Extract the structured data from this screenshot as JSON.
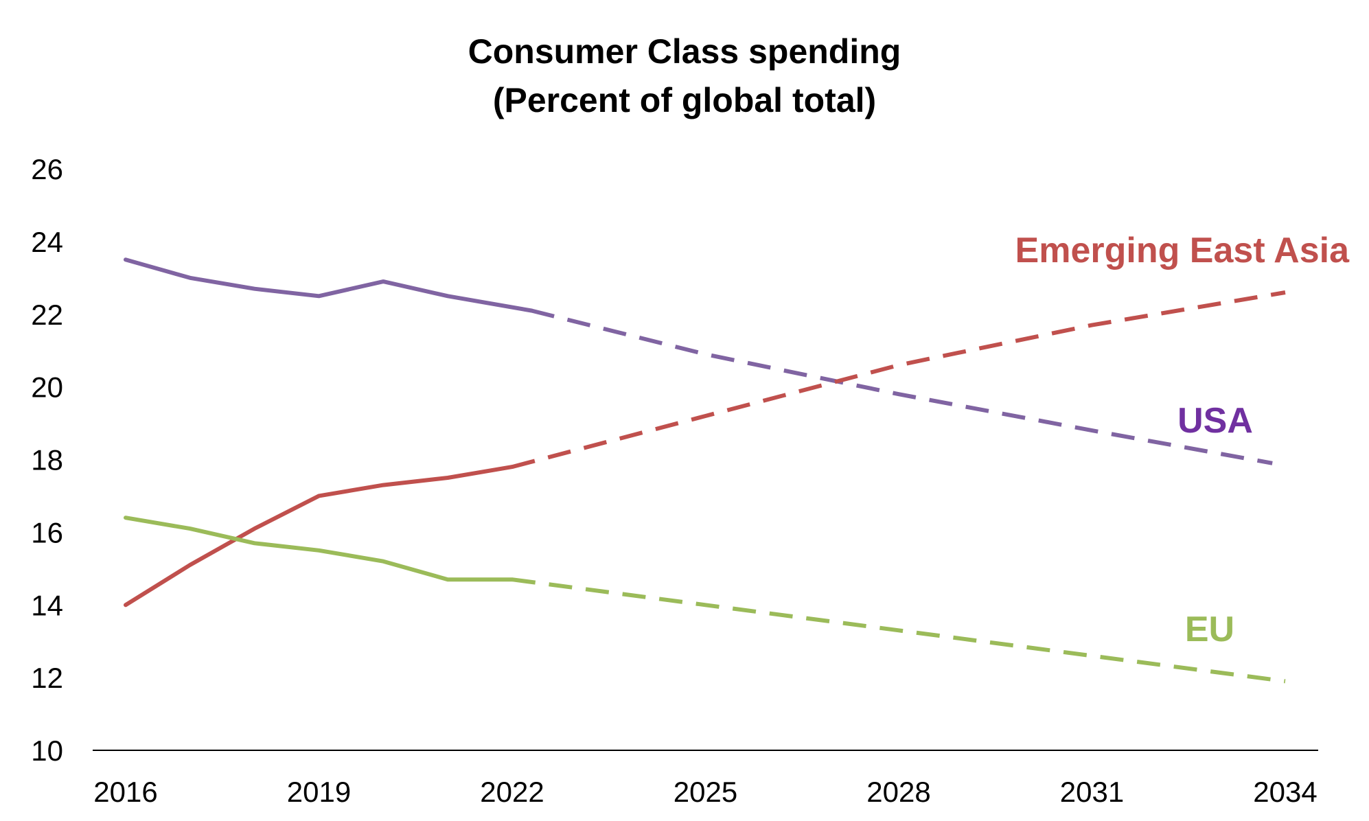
{
  "chart_data": {
    "type": "line",
    "title": "Consumer Class spending",
    "subtitle": "(Percent of global total)",
    "xlabel": "",
    "ylabel": "",
    "xlim": [
      2016,
      2034
    ],
    "ylim": [
      10,
      26
    ],
    "x_ticks": [
      "2016",
      "2019",
      "2022",
      "2025",
      "2028",
      "2031",
      "2034"
    ],
    "y_ticks": [
      "10",
      "12",
      "14",
      "16",
      "18",
      "20",
      "22",
      "24",
      "26"
    ],
    "grid": false,
    "legend": "inline labels at line ends",
    "series": [
      {
        "name": "USA",
        "label": "USA",
        "color": "#8064a2",
        "label_color": "#7030a0",
        "actual": {
          "x": [
            2016,
            2017,
            2018,
            2019,
            2020,
            2021,
            2022.3
          ],
          "y": [
            23.5,
            23.0,
            22.7,
            22.5,
            22.9,
            22.5,
            22.1
          ]
        },
        "projected": {
          "x": [
            2022.3,
            2025,
            2028,
            2031,
            2033.8
          ],
          "y": [
            22.1,
            20.9,
            19.8,
            18.8,
            17.9
          ]
        }
      },
      {
        "name": "Emerging East Asia",
        "label": "Emerging East Asia",
        "color": "#c0504d",
        "label_color": "#c0504d",
        "actual": {
          "x": [
            2016,
            2017,
            2018,
            2019,
            2020,
            2021,
            2022
          ],
          "y": [
            14.0,
            15.1,
            16.1,
            17.0,
            17.3,
            17.5,
            17.8
          ]
        },
        "projected": {
          "x": [
            2022,
            2025,
            2028,
            2031,
            2034
          ],
          "y": [
            17.8,
            19.2,
            20.6,
            21.7,
            22.6
          ]
        }
      },
      {
        "name": "EU",
        "label": "EU",
        "color": "#9bbb59",
        "label_color": "#9bbb59",
        "actual": {
          "x": [
            2016,
            2017,
            2018,
            2019,
            2020,
            2021,
            2022
          ],
          "y": [
            16.4,
            16.1,
            15.7,
            15.5,
            15.2,
            14.7,
            14.7
          ]
        },
        "projected": {
          "x": [
            2022,
            2025,
            2028,
            2031,
            2034
          ],
          "y": [
            14.7,
            14.0,
            13.3,
            12.6,
            11.9
          ]
        }
      }
    ]
  }
}
